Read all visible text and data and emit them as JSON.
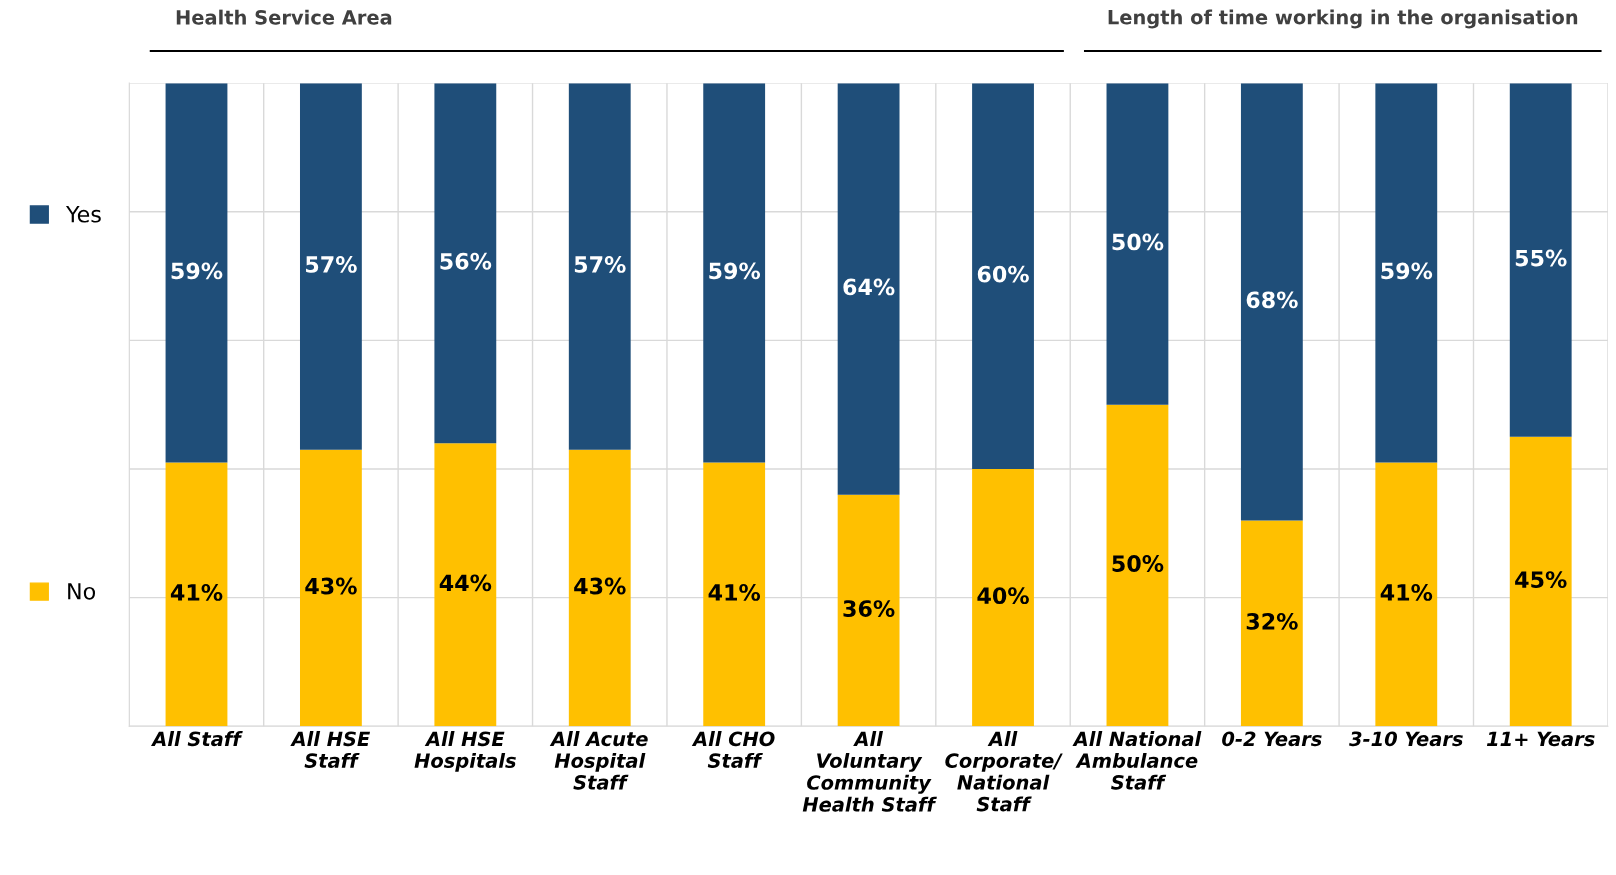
{
  "chart_data": {
    "type": "bar",
    "stacked": true,
    "categories": [
      "All Staff",
      "All HSE\nStaff",
      "All HSE\nHospitals",
      "All Acute\nHospital\nStaff",
      "All CHO\nStaff",
      "All\nVoluntary\nCommunity\nHealth Staff",
      "All\nCorporate/\nNational\nStaff",
      "All National\nAmbulance\nStaff",
      "0-2 Years",
      "3-10 Years",
      "11+ Years"
    ],
    "series": [
      {
        "name": "No",
        "color": "#ffc000",
        "values": [
          41,
          43,
          44,
          43,
          41,
          36,
          40,
          50,
          32,
          41,
          45
        ],
        "value_labels": [
          "41%",
          "43%",
          "44%",
          "43%",
          "41%",
          "36%",
          "40%",
          "50%",
          "32%",
          "41%",
          "45%"
        ]
      },
      {
        "name": "Yes",
        "color": "#1f4e79",
        "values": [
          59,
          57,
          56,
          57,
          59,
          64,
          60,
          50,
          68,
          59,
          55
        ],
        "value_labels": [
          "59%",
          "57%",
          "56%",
          "57%",
          "59%",
          "64%",
          "60%",
          "50%",
          "68%",
          "59%",
          "55%"
        ]
      }
    ],
    "tick_labels": "x",
    "grid": true,
    "legend": "left",
    "annotations": [
      "Health Service Area",
      "Length of time working in the organisation"
    ]
  }
}
